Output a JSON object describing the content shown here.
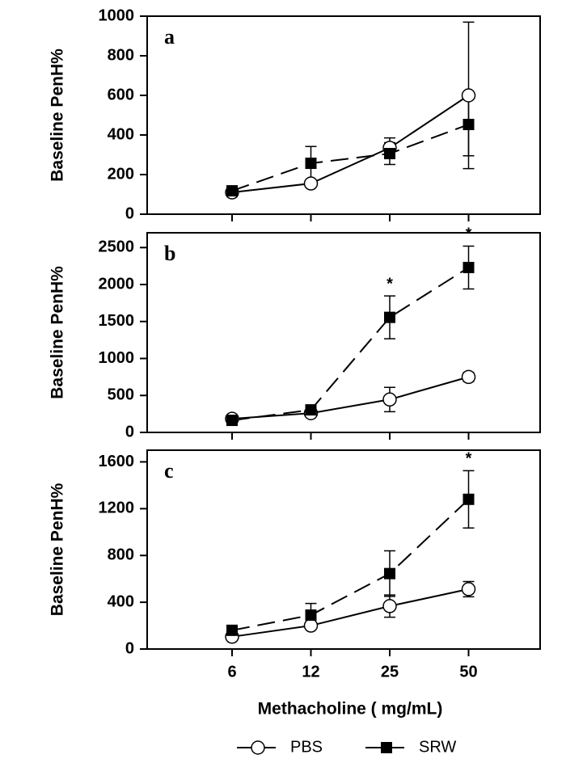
{
  "chart_data": [
    {
      "type": "line",
      "panel_label": "a",
      "ylabel": "Baseline PenH%",
      "ylim": [
        0,
        1000
      ],
      "yticks": [
        0,
        200,
        400,
        600,
        800,
        1000
      ],
      "series": [
        {
          "marker": "circle",
          "color": "#000000",
          "dashed": false,
          "values": [
            110,
            155,
            335,
            600
          ],
          "errors": [
            20,
            15,
            50,
            370
          ]
        },
        {
          "marker": "square",
          "color": "#000000",
          "dashed": true,
          "values": [
            118,
            257,
            306,
            453
          ],
          "errors": [
            15,
            85,
            55,
            158
          ]
        }
      ]
    },
    {
      "type": "line",
      "panel_label": "b",
      "ylabel": "Baseline PenH%",
      "ylim": [
        0,
        2700
      ],
      "yticks": [
        0,
        500,
        1000,
        1500,
        2000,
        2500
      ],
      "series": [
        {
          "marker": "circle",
          "color": "#000000",
          "dashed": false,
          "values": [
            185,
            260,
            445,
            750
          ],
          "errors": [
            20,
            20,
            165,
            60
          ]
        },
        {
          "marker": "square",
          "color": "#000000",
          "dashed": true,
          "values": [
            163,
            305,
            1556,
            2230
          ],
          "errors": [
            20,
            30,
            290,
            290
          ],
          "annotations": [
            null,
            null,
            "*",
            "*"
          ]
        }
      ]
    },
    {
      "type": "line",
      "panel_label": "c",
      "ylabel": "Baseline PenH%",
      "ylim": [
        0,
        1700
      ],
      "yticks": [
        0,
        400,
        800,
        1200,
        1600
      ],
      "xlabel": "Methacholine ( mg/mL)",
      "categories": [
        "6",
        "12",
        "25",
        "50"
      ],
      "series": [
        {
          "name": "PBS",
          "marker": "circle",
          "color": "#000000",
          "dashed": false,
          "values": [
            105,
            200,
            367,
            512
          ],
          "errors": [
            15,
            30,
            95,
            65
          ]
        },
        {
          "name": "SRW",
          "marker": "square",
          "color": "#000000",
          "dashed": true,
          "values": [
            160,
            290,
            645,
            1280
          ],
          "errors": [
            15,
            100,
            195,
            245
          ],
          "annotations": [
            null,
            null,
            null,
            "*"
          ]
        }
      ]
    }
  ]
}
